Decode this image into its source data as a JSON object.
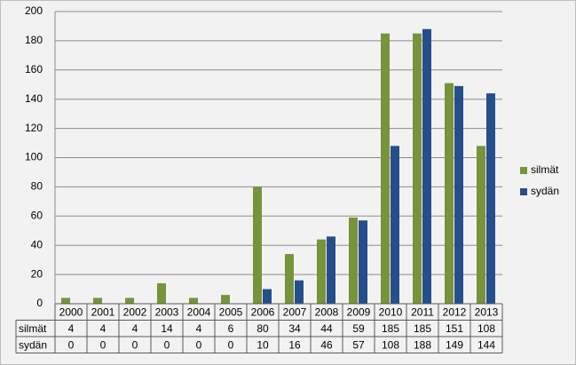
{
  "chart_data": {
    "type": "bar",
    "categories": [
      "2000",
      "2001",
      "2002",
      "2003",
      "2004",
      "2005",
      "2006",
      "2007",
      "2008",
      "2009",
      "2010",
      "2011",
      "2012",
      "2013"
    ],
    "series": [
      {
        "name": "silmät",
        "color": "#77933c",
        "values": [
          4,
          4,
          4,
          14,
          4,
          6,
          80,
          34,
          44,
          59,
          185,
          185,
          151,
          108
        ]
      },
      {
        "name": "sydän",
        "color": "#254e8c",
        "values": [
          0,
          0,
          0,
          0,
          0,
          0,
          10,
          16,
          46,
          57,
          108,
          188,
          149,
          144
        ]
      }
    ],
    "ylim": [
      0,
      200
    ],
    "yticks": [
      0,
      20,
      40,
      60,
      80,
      100,
      120,
      140,
      160,
      180,
      200
    ],
    "grid": true,
    "legend": "right",
    "data_table": true
  }
}
